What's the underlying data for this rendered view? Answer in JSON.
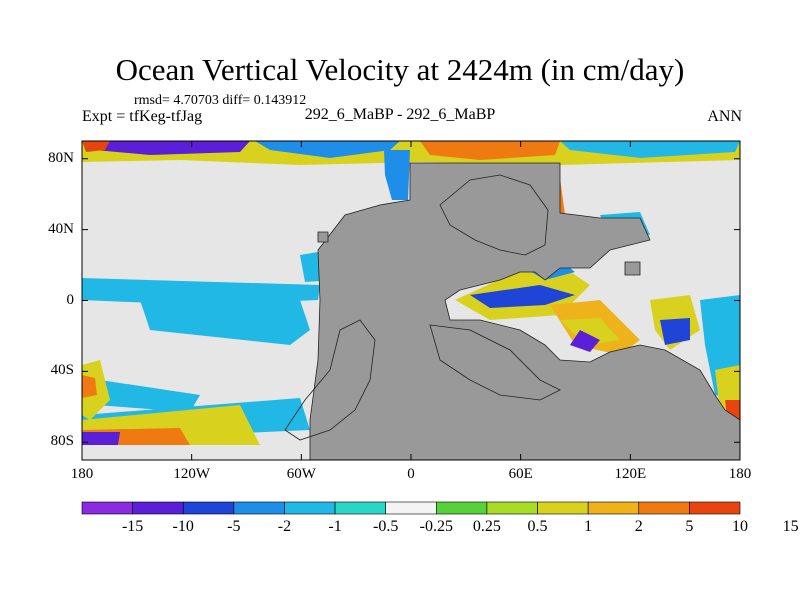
{
  "header": {
    "title": "Ocean Vertical Velocity at 2424m (in cm/day)",
    "stats": "rmsd= 4.70703 diff= 0.143912",
    "experiment": "Expt = tfKeg-tfJag",
    "cases": "292_6_MaBP - 292_6_MaBP",
    "season": "ANN"
  },
  "map": {
    "projection": "cylindrical-equidistant",
    "lon_range": [
      -180,
      180
    ],
    "lat_range": [
      -90,
      90
    ],
    "x_ticks": [
      {
        "value": -180,
        "label": "180"
      },
      {
        "value": -120,
        "label": "120W"
      },
      {
        "value": -60,
        "label": "60W"
      },
      {
        "value": 0,
        "label": "0"
      },
      {
        "value": 60,
        "label": "60E"
      },
      {
        "value": 120,
        "label": "120E"
      },
      {
        "value": 180,
        "label": "180"
      }
    ],
    "y_ticks": [
      {
        "value": 80,
        "label": "80N"
      },
      {
        "value": 40,
        "label": "40N"
      },
      {
        "value": 0,
        "label": "0"
      },
      {
        "value": -40,
        "label": "40S"
      },
      {
        "value": -80,
        "label": "80S"
      }
    ],
    "background_color": "#e6e6e6",
    "land_color": "#999999"
  },
  "colorbar": {
    "colors": [
      "#8a2be2",
      "#5a1fd6",
      "#1f44d8",
      "#1f8ee8",
      "#22b8e6",
      "#2ad6c8",
      "#f4f4f4",
      "#55d23a",
      "#a8dc28",
      "#d8d21e",
      "#eeb21a",
      "#ef7a12",
      "#e84410"
    ],
    "labels": [
      "-15",
      "-10",
      "-5",
      "-2",
      "-1",
      "-0.5",
      "-0.25",
      "0.25",
      "0.5",
      "1",
      "2",
      "5",
      "10",
      "15"
    ]
  }
}
